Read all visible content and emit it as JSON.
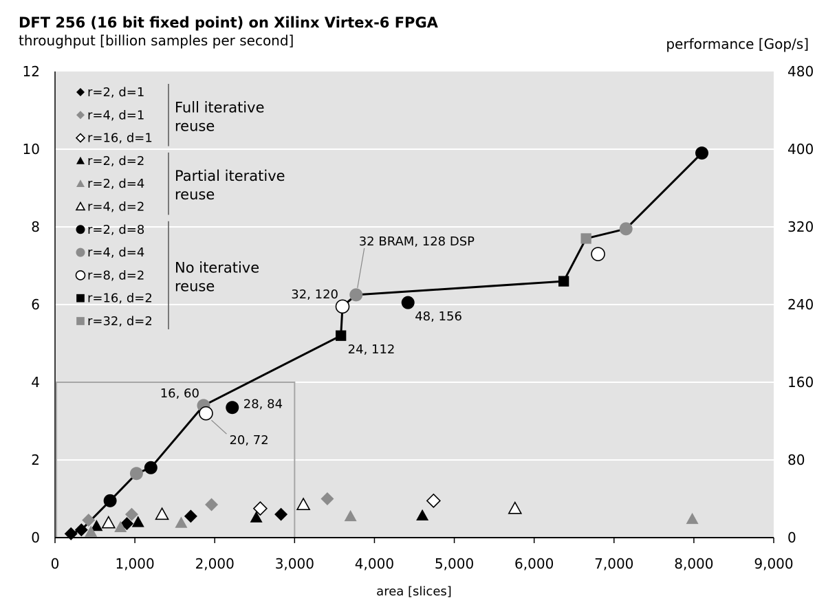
{
  "chart_data": {
    "type": "scatter",
    "title": "DFT 256 (16 bit fixed point) on Xilinx Virtex-6 FPGA",
    "subtitle": "throughput [billion samples per second]",
    "ylabel_right": "performance [Gop/s]",
    "xlabel": "area [slices]",
    "xlim": [
      0,
      9000
    ],
    "ylim": [
      0,
      12
    ],
    "y2lim": [
      0,
      480
    ],
    "x_ticks": [
      "0",
      "1,000",
      "2,000",
      "3,000",
      "4,000",
      "5,000",
      "6,000",
      "7,000",
      "8,000",
      "9,000"
    ],
    "y_ticks": [
      "0",
      "2",
      "4",
      "6",
      "8",
      "10",
      "12"
    ],
    "y2_ticks": [
      "0",
      "80",
      "160",
      "240",
      "320",
      "400",
      "480"
    ],
    "grid": "horizontal",
    "colors": {
      "plot_bg": "#e3e3e3",
      "grid": "#ffffff",
      "black": "#000000",
      "gray": "#8c8c8c",
      "white": "#ffffff",
      "zoom_box": "#a6a6a6"
    },
    "series": [
      {
        "name": "r=2, d=1",
        "marker": "diamond",
        "fill": "black",
        "points": [
          [
            200,
            0.1
          ],
          [
            330,
            0.2
          ],
          [
            900,
            0.36
          ],
          [
            1700,
            0.55
          ],
          [
            2830,
            0.6
          ]
        ]
      },
      {
        "name": "r=4, d=1",
        "marker": "diamond",
        "fill": "gray",
        "points": [
          [
            420,
            0.45
          ],
          [
            960,
            0.6
          ],
          [
            1960,
            0.85
          ],
          [
            3410,
            1.0
          ]
        ]
      },
      {
        "name": "r=16, d=1",
        "marker": "diamond",
        "fill": "white",
        "points": [
          [
            2570,
            0.75
          ],
          [
            4740,
            0.95
          ]
        ]
      },
      {
        "name": "r=2, d=2",
        "marker": "triangle",
        "fill": "black",
        "points": [
          [
            520,
            0.3
          ],
          [
            1040,
            0.4
          ],
          [
            2520,
            0.52
          ],
          [
            4600,
            0.57
          ]
        ]
      },
      {
        "name": "r=2, d=4",
        "marker": "triangle",
        "fill": "gray",
        "points": [
          [
            450,
            0.15
          ],
          [
            820,
            0.27
          ],
          [
            1580,
            0.38
          ],
          [
            3700,
            0.55
          ],
          [
            7980,
            0.48
          ]
        ]
      },
      {
        "name": "r=4, d=2",
        "marker": "triangle",
        "fill": "white",
        "points": [
          [
            670,
            0.38
          ],
          [
            1340,
            0.6
          ],
          [
            3110,
            0.85
          ],
          [
            5760,
            0.75
          ]
        ]
      },
      {
        "name": "r=2, d=8",
        "marker": "circle",
        "fill": "black",
        "points": [
          [
            690,
            0.95
          ],
          [
            1200,
            1.8
          ],
          [
            2220,
            3.35
          ],
          [
            4420,
            6.05
          ],
          [
            8100,
            9.9
          ]
        ]
      },
      {
        "name": "r=4, d=4",
        "marker": "circle",
        "fill": "gray",
        "points": [
          [
            1020,
            1.65
          ],
          [
            1860,
            3.4
          ],
          [
            3770,
            6.25
          ],
          [
            7150,
            7.95
          ]
        ]
      },
      {
        "name": "r=8, d=2",
        "marker": "circle",
        "fill": "white",
        "points": [
          [
            1890,
            3.2
          ],
          [
            3600,
            5.95
          ],
          [
            6800,
            7.3
          ]
        ]
      },
      {
        "name": "r=16, d=2",
        "marker": "square",
        "fill": "black",
        "points": [
          [
            3580,
            5.2
          ],
          [
            6370,
            6.6
          ]
        ]
      },
      {
        "name": "r=32, d=2",
        "marker": "square",
        "fill": "gray",
        "points": [
          [
            6650,
            7.7
          ]
        ]
      }
    ],
    "pareto_line": [
      [
        200,
        0.1
      ],
      [
        330,
        0.2
      ],
      [
        690,
        0.95
      ],
      [
        1020,
        1.65
      ],
      [
        1200,
        1.8
      ],
      [
        1860,
        3.4
      ],
      [
        3580,
        5.2
      ],
      [
        3600,
        5.95
      ],
      [
        3770,
        6.25
      ],
      [
        6370,
        6.6
      ],
      [
        6650,
        7.7
      ],
      [
        7150,
        7.95
      ],
      [
        8100,
        9.9
      ]
    ],
    "zoom_box": {
      "x": [
        0,
        3000
      ],
      "y": [
        0,
        4
      ]
    },
    "legend_groups": [
      {
        "label_lines": [
          "Full iterative",
          "reuse"
        ],
        "series_range": [
          0,
          2
        ]
      },
      {
        "label_lines": [
          "Partial iterative",
          "reuse"
        ],
        "series_range": [
          3,
          5
        ]
      },
      {
        "label_lines": [
          "No iterative",
          "reuse"
        ],
        "series_range": [
          6,
          10
        ]
      }
    ],
    "annotations": [
      {
        "text": "16, 60",
        "point": [
          1860,
          3.4
        ],
        "anchor": "left-above"
      },
      {
        "text": "28, 84",
        "point": [
          2220,
          3.35
        ],
        "anchor": "right"
      },
      {
        "text": "20, 72",
        "point": [
          1890,
          3.2
        ],
        "anchor": "below-right-leader"
      },
      {
        "text": "24, 112",
        "point": [
          3580,
          5.2
        ],
        "anchor": "below-right"
      },
      {
        "text": "32, 120",
        "point": [
          3600,
          5.95
        ],
        "anchor": "left-above"
      },
      {
        "text": "48, 156",
        "point": [
          4420,
          6.05
        ],
        "anchor": "below-right"
      },
      {
        "text": "32 BRAM, 128 DSP",
        "point": [
          3770,
          6.25
        ],
        "anchor": "above-leader"
      }
    ]
  }
}
